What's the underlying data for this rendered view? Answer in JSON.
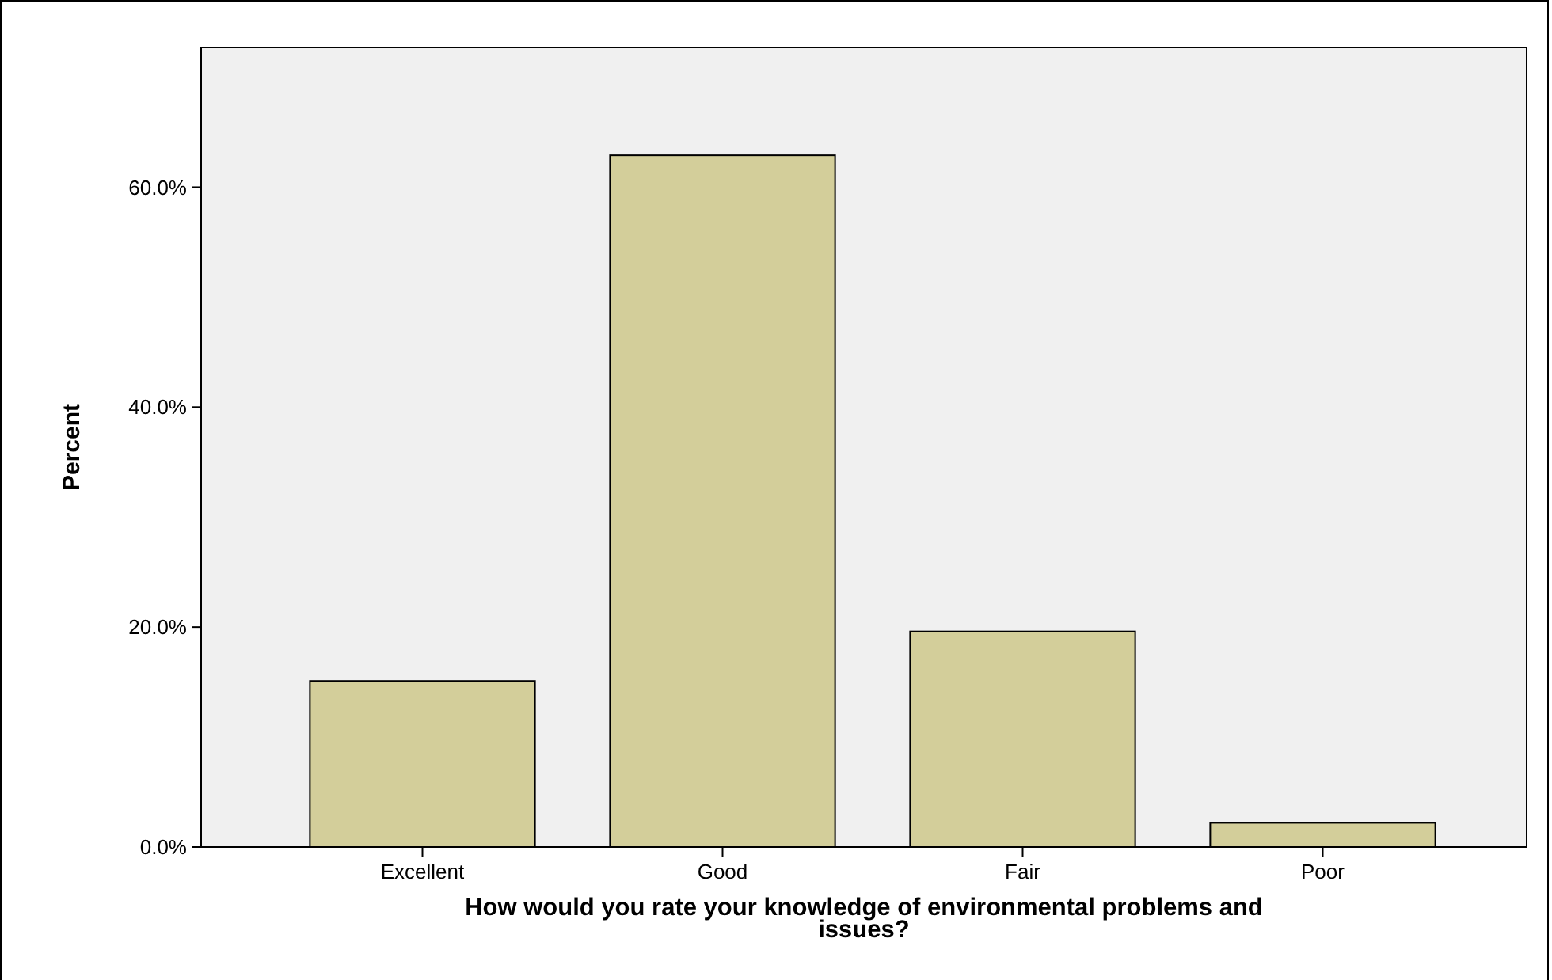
{
  "chart_data": {
    "type": "bar",
    "xlabel": "How would you rate your knowledge of environmental problems and issues?",
    "ylabel": "Percent",
    "categories": [
      "Excellent",
      "Good",
      "Fair",
      "Poor"
    ],
    "values": [
      15.1,
      62.9,
      19.6,
      2.2
    ],
    "color": "#d3ce9a",
    "ylim": [
      0,
      72.7
    ],
    "yticks": [
      {
        "value": 0,
        "label": "0.0%"
      },
      {
        "value": 20,
        "label": "20.0%"
      },
      {
        "value": 40,
        "label": "40.0%"
      },
      {
        "value": 60,
        "label": "60.0%"
      }
    ],
    "grid": false
  }
}
